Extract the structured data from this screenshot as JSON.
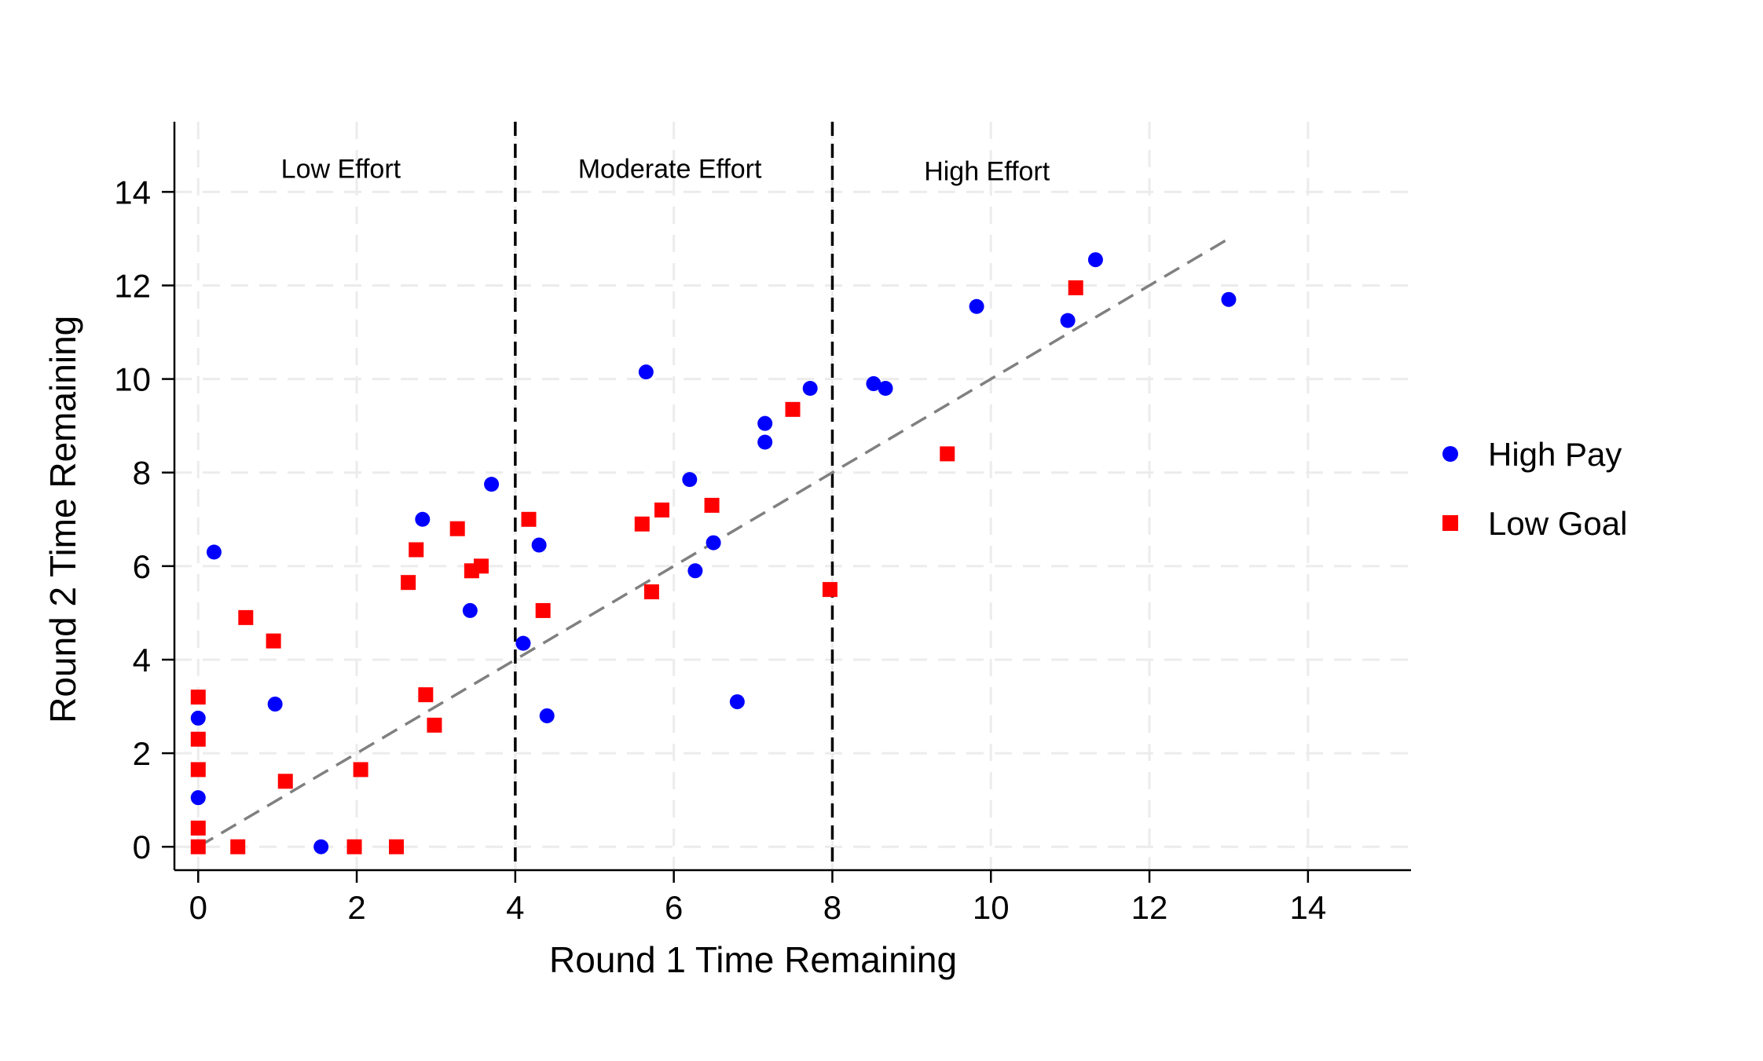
{
  "chart_data": {
    "type": "scatter",
    "title": "",
    "xlabel": "Round 1 Time Remaining",
    "ylabel": "Round 2 Time Remaining",
    "xlim": [
      -0.3,
      15.3
    ],
    "ylim": [
      -0.5,
      15.5
    ],
    "xticks": [
      0,
      2,
      4,
      6,
      8,
      10,
      12,
      14
    ],
    "yticks": [
      0,
      2,
      4,
      6,
      8,
      10,
      12,
      14
    ],
    "grid": true,
    "legend_position": "right",
    "reference_line": {
      "style": "dashed",
      "color": "#808080",
      "x": [
        0,
        13
      ],
      "y": [
        0,
        13
      ]
    },
    "vertical_lines": [
      {
        "x": 4,
        "style": "dashed",
        "color": "#000000"
      },
      {
        "x": 8,
        "style": "dashed",
        "color": "#000000"
      }
    ],
    "region_labels": [
      {
        "text": "Low Effort",
        "x": 1.8,
        "y": 14.3
      },
      {
        "text": "Moderate Effort",
        "x": 5.95,
        "y": 14.3
      },
      {
        "text": "High Effort",
        "x": 9.95,
        "y": 14.25
      }
    ],
    "series": [
      {
        "name": "High Pay",
        "marker": "circle",
        "color": "#0000ff",
        "points": [
          [
            0.2,
            6.3
          ],
          [
            0,
            2.75
          ],
          [
            0,
            1.05
          ],
          [
            0.97,
            3.05
          ],
          [
            1.55,
            0
          ],
          [
            2.83,
            7.0
          ],
          [
            3.43,
            5.05
          ],
          [
            3.7,
            7.75
          ],
          [
            4.1,
            4.35
          ],
          [
            4.3,
            6.45
          ],
          [
            4.4,
            2.8
          ],
          [
            5.65,
            10.15
          ],
          [
            6.2,
            7.85
          ],
          [
            6.27,
            5.9
          ],
          [
            6.5,
            6.5
          ],
          [
            6.8,
            3.1
          ],
          [
            7.15,
            9.05
          ],
          [
            7.15,
            8.65
          ],
          [
            7.72,
            9.8
          ],
          [
            8.52,
            9.9
          ],
          [
            8.67,
            9.8
          ],
          [
            9.82,
            11.55
          ],
          [
            10.97,
            11.25
          ],
          [
            11.32,
            12.55
          ],
          [
            13.0,
            11.7
          ]
        ]
      },
      {
        "name": "Low Goal",
        "marker": "square",
        "color": "#ff0000",
        "points": [
          [
            0,
            3.2
          ],
          [
            0,
            2.3
          ],
          [
            0,
            1.65
          ],
          [
            0,
            0.4
          ],
          [
            0,
            0
          ],
          [
            0.5,
            0
          ],
          [
            0.6,
            4.9
          ],
          [
            0.95,
            4.4
          ],
          [
            1.1,
            1.4
          ],
          [
            1.97,
            0
          ],
          [
            2.05,
            1.65
          ],
          [
            2.5,
            0
          ],
          [
            2.65,
            5.65
          ],
          [
            2.75,
            6.35
          ],
          [
            2.87,
            3.25
          ],
          [
            2.98,
            2.6
          ],
          [
            3.27,
            6.8
          ],
          [
            3.45,
            5.9
          ],
          [
            3.57,
            6.0
          ],
          [
            4.17,
            7.0
          ],
          [
            4.35,
            5.05
          ],
          [
            5.6,
            6.9
          ],
          [
            5.72,
            5.45
          ],
          [
            5.85,
            7.2
          ],
          [
            6.48,
            7.3
          ],
          [
            7.5,
            9.35
          ],
          [
            7.97,
            5.5
          ],
          [
            9.45,
            8.4
          ],
          [
            11.07,
            11.95
          ]
        ]
      }
    ]
  }
}
